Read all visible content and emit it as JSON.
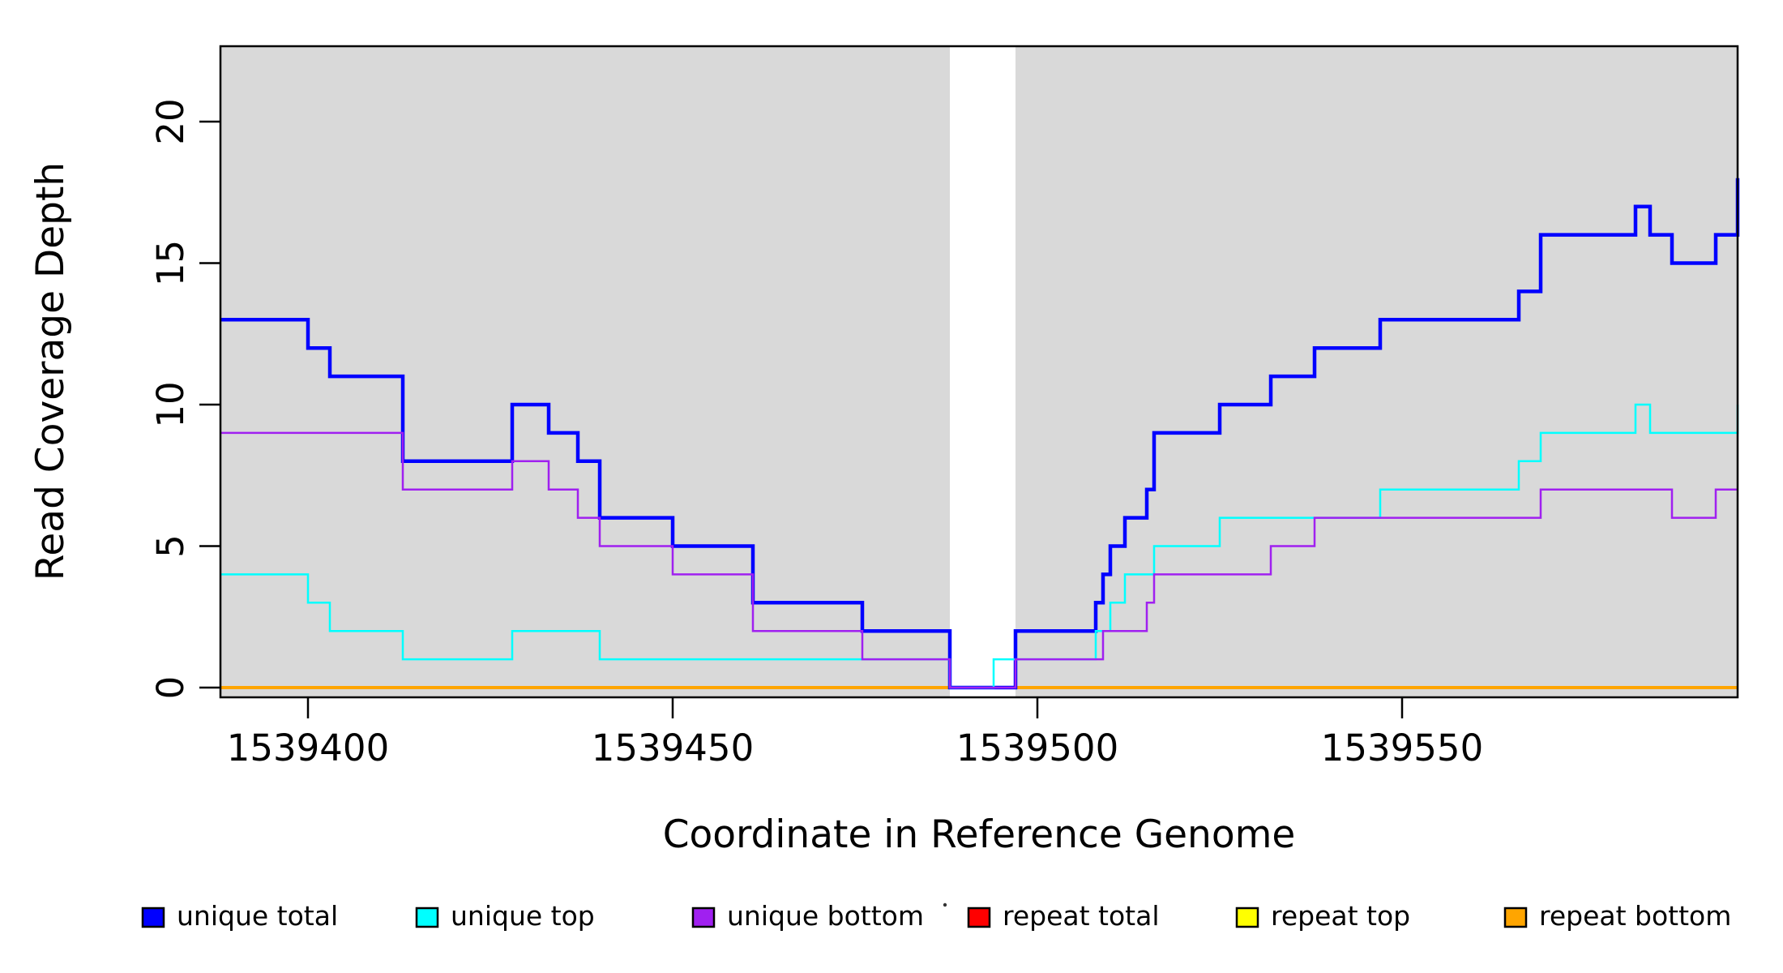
{
  "chart_data": {
    "type": "line",
    "subtype": "step-coverage-plot",
    "title": "",
    "xlabel": "Coordinate in Reference Genome",
    "ylabel": "Read Coverage Depth",
    "xlim": [
      1539388,
      1539596
    ],
    "ylim": [
      0,
      22.6
    ],
    "grid": false,
    "panel_background": "#D9D9D9",
    "highlight_band": {
      "x0": 1539488,
      "x1": 1539497,
      "color": "#FFFFFF"
    },
    "x_ticks": [
      1539400,
      1539450,
      1539500,
      1539550
    ],
    "x_tick_labels": [
      "1539400",
      "1539450",
      "1539500",
      "1539550"
    ],
    "y_ticks": [
      0,
      5,
      10,
      15,
      20
    ],
    "y_tick_labels": [
      "0",
      "5",
      "10",
      "15",
      "20"
    ],
    "series": [
      {
        "name": "repeat total",
        "color": "#FF0000",
        "width": 2.5,
        "points": [
          [
            1539388,
            0
          ]
        ]
      },
      {
        "name": "repeat top",
        "color": "#FFFF00",
        "width": 2.5,
        "points": [
          [
            1539388,
            0
          ]
        ]
      },
      {
        "name": "repeat bottom",
        "color": "#FFA500",
        "width": 4,
        "points": [
          [
            1539388,
            0
          ]
        ]
      },
      {
        "name": "unique total",
        "color": "#0000FF",
        "width": 4.5,
        "points": [
          [
            1539388,
            13
          ],
          [
            1539400,
            12
          ],
          [
            1539403,
            11
          ],
          [
            1539413,
            8
          ],
          [
            1539428,
            10
          ],
          [
            1539433,
            9
          ],
          [
            1539437,
            8
          ],
          [
            1539440,
            6
          ],
          [
            1539450,
            5
          ],
          [
            1539461,
            3
          ],
          [
            1539476,
            2
          ],
          [
            1539488,
            0
          ],
          [
            1539497,
            2
          ],
          [
            1539508,
            3
          ],
          [
            1539509,
            4
          ],
          [
            1539510,
            5
          ],
          [
            1539512,
            6
          ],
          [
            1539515,
            7
          ],
          [
            1539516,
            9
          ],
          [
            1539525,
            10
          ],
          [
            1539532,
            11
          ],
          [
            1539538,
            12
          ],
          [
            1539547,
            13
          ],
          [
            1539566,
            14
          ],
          [
            1539569,
            16
          ],
          [
            1539582,
            17
          ],
          [
            1539584,
            16
          ],
          [
            1539587,
            15
          ],
          [
            1539593,
            16
          ],
          [
            1539596,
            18
          ]
        ]
      },
      {
        "name": "unique top",
        "color": "#00FFFF",
        "width": 2.5,
        "points": [
          [
            1539388,
            4
          ],
          [
            1539400,
            3
          ],
          [
            1539403,
            2
          ],
          [
            1539413,
            1
          ],
          [
            1539428,
            2
          ],
          [
            1539440,
            1
          ],
          [
            1539488,
            0
          ],
          [
            1539494,
            1
          ],
          [
            1539508,
            2
          ],
          [
            1539510,
            3
          ],
          [
            1539512,
            4
          ],
          [
            1539516,
            5
          ],
          [
            1539525,
            6
          ],
          [
            1539547,
            7
          ],
          [
            1539566,
            8
          ],
          [
            1539569,
            9
          ],
          [
            1539582,
            10
          ],
          [
            1539584,
            9
          ],
          [
            1539596,
            10
          ]
        ]
      },
      {
        "name": "unique bottom",
        "color": "#A020F0",
        "width": 2.5,
        "points": [
          [
            1539388,
            9
          ],
          [
            1539413,
            7
          ],
          [
            1539428,
            8
          ],
          [
            1539433,
            7
          ],
          [
            1539437,
            6
          ],
          [
            1539440,
            5
          ],
          [
            1539450,
            4
          ],
          [
            1539461,
            2
          ],
          [
            1539476,
            1
          ],
          [
            1539488,
            0
          ],
          [
            1539497,
            1
          ],
          [
            1539509,
            2
          ],
          [
            1539515,
            3
          ],
          [
            1539516,
            4
          ],
          [
            1539532,
            5
          ],
          [
            1539538,
            6
          ],
          [
            1539569,
            7
          ],
          [
            1539587,
            6
          ],
          [
            1539593,
            7
          ]
        ]
      }
    ]
  },
  "legend": {
    "items": [
      {
        "label": "unique total",
        "color": "#0000FF"
      },
      {
        "label": "unique top",
        "color": "#00FFFF"
      },
      {
        "label": "unique bottom",
        "color": "#A020F0"
      },
      {
        "label": "repeat total",
        "color": "#FF0000"
      },
      {
        "label": "repeat top",
        "color": "#FFFF00"
      },
      {
        "label": "repeat bottom",
        "color": "#FFA500"
      }
    ],
    "square_border_color": "#000000"
  },
  "axes": {
    "x_title": "Coordinate in Reference Genome",
    "y_title": "Read Coverage Depth"
  }
}
